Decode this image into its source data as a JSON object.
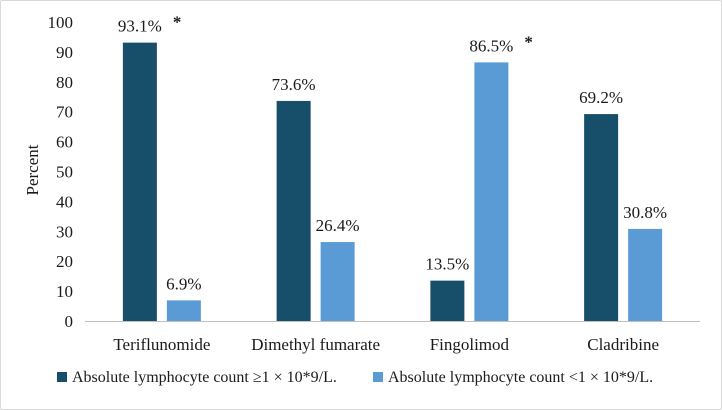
{
  "chart_data": {
    "type": "bar",
    "title": "",
    "xlabel": "",
    "ylabel": "Percent",
    "ylim": [
      0,
      100
    ],
    "ytick_step": 10,
    "categories": [
      "Teriflunomide",
      "Dimethyl fumarate",
      "Fingolimod",
      "Cladribine"
    ],
    "series": [
      {
        "name": "Absolute lymphocyte count ≥1 × 10*9/L.",
        "color": "#174f6b",
        "values": [
          93.1,
          73.6,
          13.5,
          69.2
        ],
        "labels": [
          "93.1%",
          "73.6%",
          "13.5%",
          "69.2%"
        ]
      },
      {
        "name": "Absolute lymphocyte count <1 × 10*9/L.",
        "color": "#5b9bd5",
        "values": [
          6.9,
          26.4,
          86.5,
          30.8
        ],
        "labels": [
          "6.9%",
          "26.4%",
          "86.5%",
          "30.8%"
        ]
      }
    ],
    "significance_marker": "*",
    "significance_marks": [
      {
        "series": 0,
        "category": 0
      },
      {
        "series": 1,
        "category": 2
      }
    ],
    "legend_position": "bottom"
  }
}
